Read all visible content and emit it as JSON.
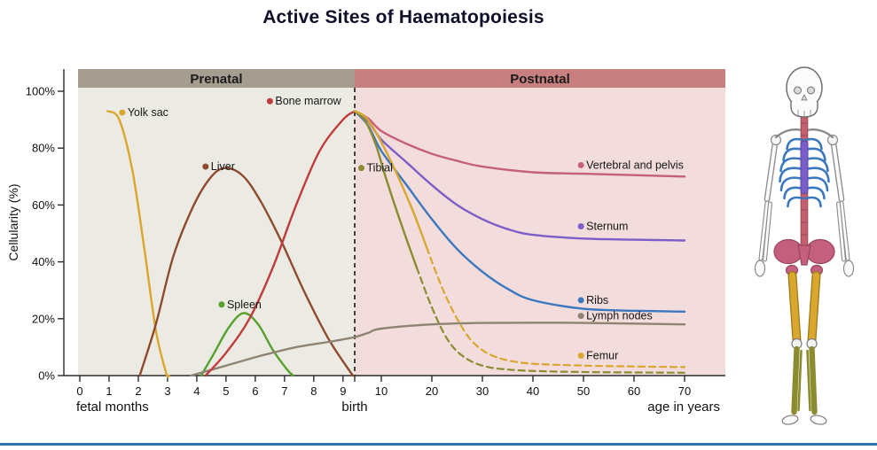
{
  "title": "Active Sites of Haematopoiesis",
  "footer": {
    "line_color": "#2e74b5"
  },
  "palette": {
    "spine": "#c4606e",
    "ribs": "#3c78c0",
    "sternum": "#7b5ec7",
    "pelvis": "#c4607e",
    "femur": "#d9a62e",
    "tibial": "#8b8b30"
  },
  "chart_data": {
    "type": "line",
    "title": "Active Sites of Haematopoiesis",
    "ylabel": "Cellularity (%)",
    "ylim": [
      0,
      100
    ],
    "grid": false,
    "y_ticks": [
      "0%",
      "20%",
      "40%",
      "60%",
      "80%",
      "100%"
    ],
    "y_tick_values": [
      0,
      20,
      40,
      60,
      80,
      100
    ],
    "regions": [
      {
        "label": "Prenatal",
        "band_color": "#a59e90",
        "bg_color": "#ecebe3"
      },
      {
        "label": "Postnatal",
        "band_color": "#c77f7f",
        "bg_color": "#f2dcdc"
      }
    ],
    "x_axis": {
      "prenatal_ticks": [
        0,
        1,
        2,
        3,
        4,
        5,
        6,
        7,
        8,
        9
      ],
      "prenatal_caption": "fetal months",
      "birth_label": "birth",
      "postnatal_ticks": [
        10,
        20,
        30,
        40,
        50,
        60,
        70
      ],
      "postnatal_caption": "age in years"
    },
    "series": [
      {
        "name": "Yolk sac",
        "color": "#d9a62e",
        "pre": [
          [
            0.95,
            93
          ],
          [
            1.35,
            90
          ],
          [
            1.8,
            72
          ],
          [
            2.2,
            45
          ],
          [
            2.6,
            16
          ],
          [
            2.95,
            1
          ],
          [
            3.05,
            0
          ]
        ]
      },
      {
        "name": "Liver",
        "color": "#8f4a2d",
        "pre": [
          [
            2.05,
            0
          ],
          [
            2.6,
            18
          ],
          [
            3.2,
            42
          ],
          [
            3.9,
            60
          ],
          [
            4.5,
            70
          ],
          [
            5.0,
            73
          ],
          [
            5.6,
            70
          ],
          [
            6.2,
            61
          ],
          [
            6.9,
            47
          ],
          [
            7.7,
            29
          ],
          [
            8.5,
            13
          ],
          [
            9.2,
            2
          ],
          [
            9.35,
            0
          ]
        ]
      },
      {
        "name": "Spleen",
        "color": "#56a12e",
        "pre": [
          [
            4.15,
            0
          ],
          [
            4.6,
            8
          ],
          [
            5.1,
            17
          ],
          [
            5.6,
            22
          ],
          [
            6.1,
            18
          ],
          [
            6.6,
            9
          ],
          [
            7.1,
            2
          ],
          [
            7.3,
            0
          ]
        ]
      },
      {
        "name": "Lymph nodes",
        "color": "#8d8474",
        "pre": [
          [
            3.8,
            0
          ],
          [
            5.0,
            3.5
          ],
          [
            6.2,
            7
          ],
          [
            7.4,
            10
          ],
          [
            8.6,
            12
          ],
          [
            9.4,
            13.5
          ]
        ],
        "post": [
          [
            0,
            13.5
          ],
          [
            5,
            15
          ],
          [
            10,
            16.5
          ],
          [
            20,
            18
          ],
          [
            30,
            18.5
          ],
          [
            45,
            18.6
          ],
          [
            60,
            18.3
          ],
          [
            70,
            18
          ]
        ]
      },
      {
        "name": "Bone marrow",
        "color": "#c03b3b",
        "pre": [
          [
            4.3,
            0
          ],
          [
            5.0,
            8
          ],
          [
            5.8,
            20
          ],
          [
            6.6,
            38
          ],
          [
            7.4,
            60
          ],
          [
            8.2,
            79
          ],
          [
            9.0,
            90
          ],
          [
            9.4,
            93
          ]
        ]
      },
      {
        "name": "Vertebral and pelvis",
        "color": "#c4607e",
        "post": [
          [
            0,
            93
          ],
          [
            5,
            90.5
          ],
          [
            10,
            86
          ],
          [
            15,
            81.5
          ],
          [
            20,
            78
          ],
          [
            25,
            75.5
          ],
          [
            30,
            73.5
          ],
          [
            40,
            71.5
          ],
          [
            50,
            71
          ],
          [
            60,
            70.5
          ],
          [
            70,
            70
          ]
        ]
      },
      {
        "name": "Sternum",
        "color": "#7b5ec7",
        "post": [
          [
            0,
            93
          ],
          [
            5,
            89.5
          ],
          [
            10,
            83
          ],
          [
            15,
            75
          ],
          [
            20,
            67
          ],
          [
            25,
            60
          ],
          [
            30,
            55
          ],
          [
            35,
            51.5
          ],
          [
            40,
            49.5
          ],
          [
            50,
            48.2
          ],
          [
            60,
            47.8
          ],
          [
            70,
            47.5
          ]
        ]
      },
      {
        "name": "Ribs",
        "color": "#3c78c0",
        "post": [
          [
            0,
            93
          ],
          [
            5,
            88
          ],
          [
            10,
            79
          ],
          [
            15,
            67
          ],
          [
            20,
            55
          ],
          [
            25,
            44.5
          ],
          [
            30,
            36.5
          ],
          [
            35,
            30.5
          ],
          [
            40,
            26.5
          ],
          [
            50,
            23.5
          ],
          [
            60,
            22.8
          ],
          [
            70,
            22.5
          ]
        ]
      },
      {
        "name": "Tibial",
        "color": "#8b8b30",
        "post": [
          [
            0,
            93
          ],
          [
            4,
            89.5
          ],
          [
            8,
            81
          ],
          [
            11,
            69
          ],
          [
            14,
            53
          ],
          [
            17,
            38
          ]
        ],
        "post_dashed": [
          [
            20,
            24
          ],
          [
            23,
            13
          ],
          [
            26,
            7
          ],
          [
            30,
            3.5
          ],
          [
            36,
            2
          ],
          [
            48,
            1.3
          ],
          [
            70,
            1
          ]
        ]
      },
      {
        "name": "Femur",
        "color": "#d9a62e",
        "post": [
          [
            0,
            93
          ],
          [
            4,
            91
          ],
          [
            8,
            85.5
          ],
          [
            12,
            75
          ],
          [
            16,
            59
          ],
          [
            19,
            45
          ]
        ],
        "post_dashed": [
          [
            22,
            31
          ],
          [
            25,
            20
          ],
          [
            28,
            12
          ],
          [
            32,
            7
          ],
          [
            38,
            4.5
          ],
          [
            48,
            3.6
          ],
          [
            60,
            3.2
          ],
          [
            70,
            3
          ]
        ]
      }
    ],
    "labels": [
      {
        "text": "Yolk sac",
        "color": "#d9a62e",
        "axis": "m",
        "x": 1.45,
        "v": 92.5
      },
      {
        "text": "Liver",
        "color": "#8f4a2d",
        "axis": "m",
        "x": 4.3,
        "v": 73.5
      },
      {
        "text": "Bone marrow",
        "color": "#c03b3b",
        "axis": "m",
        "x": 6.5,
        "v": 96.5
      },
      {
        "text": "Spleen",
        "color": "#56a12e",
        "axis": "m",
        "x": 4.85,
        "v": 25
      },
      {
        "text": "Tibial",
        "color": "#8b8b30",
        "axis": "y",
        "x": 2.5,
        "v": 73
      },
      {
        "text": "Vertebral and pelvis",
        "color": "#c4607e",
        "axis": "y",
        "x": 49.5,
        "v": 74
      },
      {
        "text": "Sternum",
        "color": "#7b5ec7",
        "axis": "y",
        "x": 49.5,
        "v": 52.5
      },
      {
        "text": "Ribs",
        "color": "#3c78c0",
        "axis": "y",
        "x": 49.5,
        "v": 26.5
      },
      {
        "text": "Lymph nodes",
        "color": "#8d8474",
        "axis": "y",
        "x": 49.5,
        "v": 21
      },
      {
        "text": "Femur",
        "color": "#d9a62e",
        "axis": "y",
        "x": 49.5,
        "v": 7
      }
    ]
  }
}
